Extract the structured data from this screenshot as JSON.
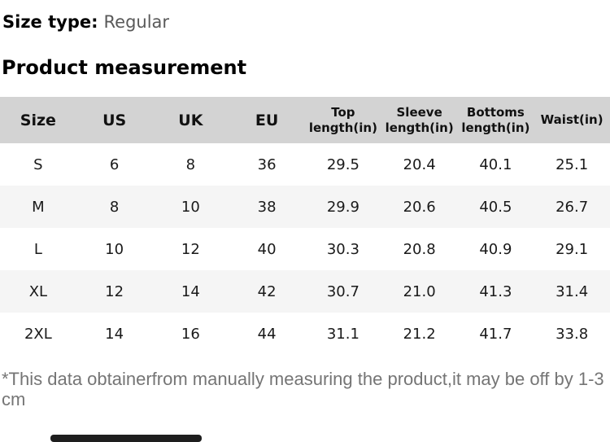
{
  "size_type": {
    "label": "Size type:",
    "value": "Regular"
  },
  "section_title": "Product measurement",
  "table": {
    "columns": [
      "Size",
      "US",
      "UK",
      "EU",
      "Top length(in)",
      "Sleeve length(in)",
      "Bottoms length(in)",
      "Waist(in)"
    ],
    "rows": [
      [
        "S",
        "6",
        "8",
        "36",
        "29.5",
        "20.4",
        "40.1",
        "25.1"
      ],
      [
        "M",
        "8",
        "10",
        "38",
        "29.9",
        "20.6",
        "40.5",
        "26.7"
      ],
      [
        "L",
        "10",
        "12",
        "40",
        "30.3",
        "20.8",
        "40.9",
        "29.1"
      ],
      [
        "XL",
        "12",
        "14",
        "42",
        "30.7",
        "21.0",
        "41.3",
        "31.4"
      ],
      [
        "2XL",
        "14",
        "16",
        "44",
        "31.1",
        "21.2",
        "41.7",
        "33.8"
      ]
    ]
  },
  "footnote": "*This data obtainerfrom manually measuring the product,it may be off by 1-3cm",
  "colors": {
    "header_bg": "#d3d3d3",
    "row_alt_bg": "#f5f5f5",
    "text": "#1a1a1a",
    "muted_text": "#757575",
    "size_type_value": "#595959",
    "bottom_bar": "#1e1e1e"
  }
}
